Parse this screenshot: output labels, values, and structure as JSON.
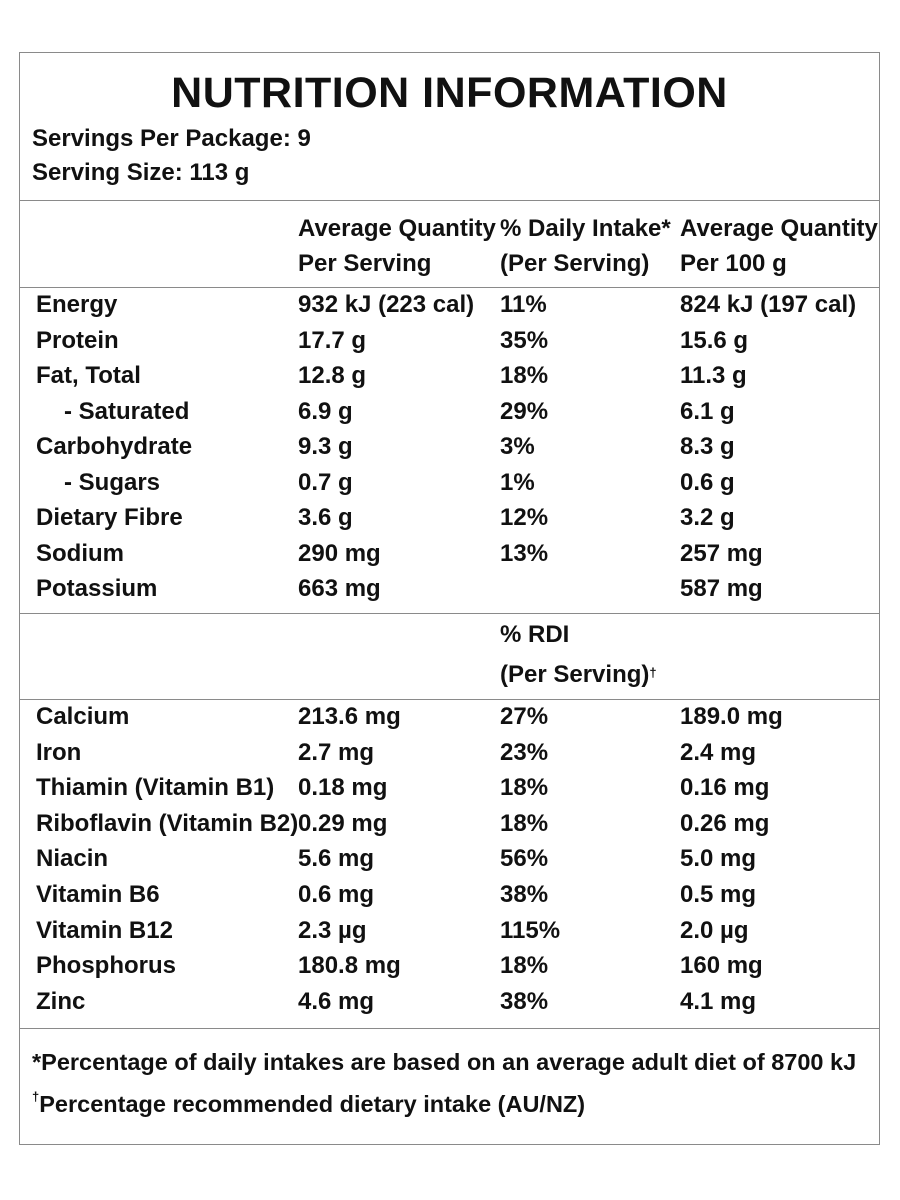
{
  "title": "NUTRITION INFORMATION",
  "servings_per_package": "Servings Per Package: 9",
  "serving_size": "Serving Size: 113 g",
  "header": {
    "col1_line1": "Average Quantity",
    "col1_line2": "Per Serving",
    "col2_line1": "% Daily Intake*",
    "col2_line2": "(Per Serving)",
    "col3_line1": "Average Quantity",
    "col3_line2": "Per 100 g"
  },
  "nutrients": [
    {
      "name": "Energy",
      "per_serving": "932 kJ (223 cal)",
      "daily": "11%",
      "per_100g": "824 kJ (197 cal)"
    },
    {
      "name": "Protein",
      "per_serving": "17.7 g",
      "daily": "35%",
      "per_100g": "15.6 g"
    },
    {
      "name": "Fat, Total",
      "per_serving": "12.8 g",
      "daily": "18%",
      "per_100g": "11.3 g"
    },
    {
      "name": "- Saturated",
      "per_serving": "6.9 g",
      "daily": "29%",
      "per_100g": "6.1 g"
    },
    {
      "name": "Carbohydrate",
      "per_serving": "9.3 g",
      "daily": "3%",
      "per_100g": "8.3 g"
    },
    {
      "name": "- Sugars",
      "per_serving": "0.7 g",
      "daily": "1%",
      "per_100g": "0.6 g"
    },
    {
      "name": "Dietary Fibre",
      "per_serving": "3.6 g",
      "daily": "12%",
      "per_100g": "3.2 g"
    },
    {
      "name": "Sodium",
      "per_serving": "290 mg",
      "daily": "13%",
      "per_100g": "257 mg"
    },
    {
      "name": "Potassium",
      "per_serving": "663 mg",
      "daily": "",
      "per_100g": "587 mg"
    }
  ],
  "rdi_header": {
    "line1": "% RDI",
    "line2": "(Per Serving)",
    "mark": "†"
  },
  "micronutrients": [
    {
      "name": "Calcium",
      "per_serving": "213.6 mg",
      "rdi": "27%",
      "per_100g": "189.0 mg"
    },
    {
      "name": "Iron",
      "per_serving": "2.7 mg",
      "rdi": "23%",
      "per_100g": "2.4 mg"
    },
    {
      "name": "Thiamin (Vitamin B1)",
      "per_serving": "0.18 mg",
      "rdi": "18%",
      "per_100g": "0.16 mg"
    },
    {
      "name": "Riboflavin (Vitamin B2)",
      "per_serving": "0.29 mg",
      "rdi": "18%",
      "per_100g": "0.26 mg"
    },
    {
      "name": "Niacin",
      "per_serving": "5.6 mg",
      "rdi": "56%",
      "per_100g": "5.0 mg"
    },
    {
      "name": "Vitamin B6",
      "per_serving": "0.6 mg",
      "rdi": "38%",
      "per_100g": "0.5 mg"
    },
    {
      "name": "Vitamin B12",
      "per_serving": "2.3 µg",
      "rdi": "115%",
      "per_100g": "2.0 µg"
    },
    {
      "name": "Phosphorus",
      "per_serving": "180.8 mg",
      "rdi": "18%",
      "per_100g": "160 mg"
    },
    {
      "name": "Zinc",
      "per_serving": "4.6 mg",
      "rdi": "38%",
      "per_100g": "4.1 mg"
    }
  ],
  "footnotes": {
    "daily_intake": "*Percentage of daily intakes are based on an average adult diet of 8700 kJ",
    "rdi_mark": "†",
    "rdi": "Percentage recommended dietary intake (AU/NZ)"
  }
}
